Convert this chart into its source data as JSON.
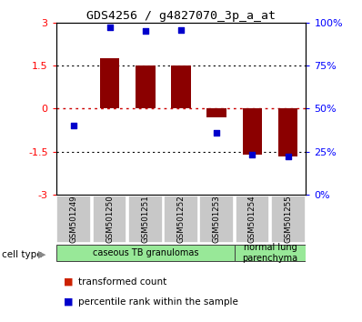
{
  "title": "GDS4256 / g4827070_3p_a_at",
  "samples": [
    "GSM501249",
    "GSM501250",
    "GSM501251",
    "GSM501252",
    "GSM501253",
    "GSM501254",
    "GSM501255"
  ],
  "transformed_count": [
    0.0,
    1.75,
    1.5,
    1.5,
    -0.3,
    -1.6,
    -1.65
  ],
  "percentile_rank_scaled": [
    -0.6,
    2.85,
    2.7,
    2.75,
    -0.85,
    -1.6,
    -1.65
  ],
  "bar_color": "#8B0000",
  "dot_color": "#0000CC",
  "ylim": [
    -3,
    3
  ],
  "yticks_left": [
    -3,
    -1.5,
    0,
    1.5,
    3
  ],
  "yticks_left_labels": [
    "-3",
    "-1.5",
    "0",
    "1.5",
    "3"
  ],
  "yticks_right_labels": [
    "0%",
    "25%",
    "50%",
    "75%",
    "100%"
  ],
  "hlines": [
    -1.5,
    0,
    1.5
  ],
  "hline_0_color": "#CC0000",
  "hline_other_color": "#000000",
  "cell_type_groups": [
    {
      "label": "caseous TB granulomas",
      "start": 0,
      "end": 4
    },
    {
      "label": "normal lung\nparenchyma",
      "start": 5,
      "end": 6
    }
  ],
  "cell_type_colors": [
    "#98E898",
    "#98E898"
  ],
  "legend_items": [
    {
      "label": "transformed count",
      "color": "#CC2200"
    },
    {
      "label": "percentile rank within the sample",
      "color": "#0000CC"
    }
  ],
  "bar_width": 0.55
}
